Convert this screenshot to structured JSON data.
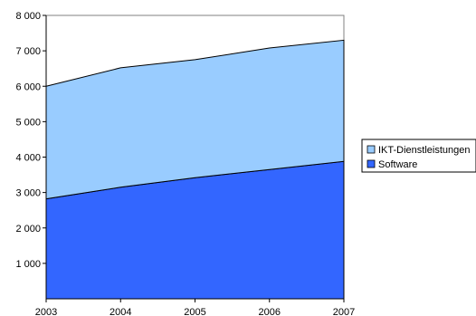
{
  "chart_data": {
    "type": "area",
    "stacked": true,
    "title": "",
    "xlabel": "",
    "ylabel": "",
    "x": [
      "2003",
      "2004",
      "2005",
      "2006",
      "2007"
    ],
    "ylim": [
      0,
      8000
    ],
    "yticks": [
      {
        "value": 1000,
        "label": "1 000"
      },
      {
        "value": 2000,
        "label": "2 000"
      },
      {
        "value": 3000,
        "label": "3 000"
      },
      {
        "value": 4000,
        "label": "4 000"
      },
      {
        "value": 5000,
        "label": "5 000"
      },
      {
        "value": 6000,
        "label": "6 000"
      },
      {
        "value": 7000,
        "label": "7 000"
      },
      {
        "value": 8000,
        "label": "8 000"
      }
    ],
    "grid": false,
    "legend_position": "right",
    "series": [
      {
        "name": "Software",
        "values": [
          2820,
          3150,
          3420,
          3650,
          3880
        ],
        "color": "#3366ff"
      },
      {
        "name": "IKT-Dienstleistungen",
        "values": [
          3180,
          3370,
          3330,
          3430,
          3420
        ],
        "color": "#99ccff"
      }
    ],
    "legend": [
      {
        "label": "IKT-Dienstleistungen",
        "color": "#99ccff"
      },
      {
        "label": "Software",
        "color": "#3366ff"
      }
    ]
  }
}
